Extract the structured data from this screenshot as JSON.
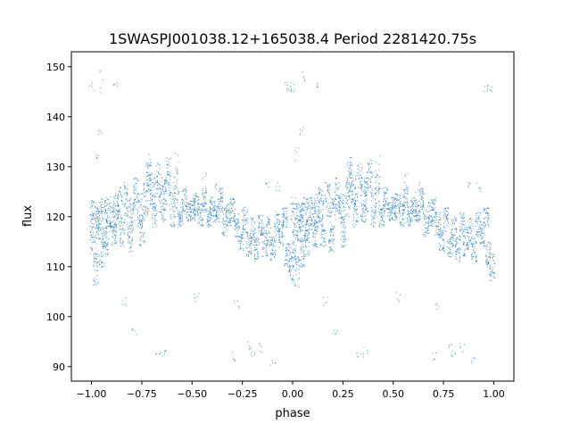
{
  "chart_data": {
    "type": "scatter",
    "title": "1SWASPJ001038.12+165038.4 Period 2281420.75s",
    "xlabel": "phase",
    "ylabel": "flux",
    "xlim": [
      -1.1,
      1.1
    ],
    "ylim": [
      87.1,
      153.0
    ],
    "xticks": [
      -1.0,
      -0.75,
      -0.5,
      -0.25,
      0.0,
      0.25,
      0.5,
      0.75,
      1.0
    ],
    "xtick_labels": [
      "−1.00",
      "−0.75",
      "−0.50",
      "−0.25",
      "0.00",
      "0.25",
      "0.50",
      "0.75",
      "1.00"
    ],
    "yticks": [
      90,
      100,
      110,
      120,
      130,
      140,
      150
    ],
    "ytick_labels": [
      "90",
      "100",
      "110",
      "120",
      "130",
      "140",
      "150"
    ],
    "grid": false,
    "marker_color": "#1f77b4",
    "note_phase_repeats": [
      -1,
      0
    ],
    "streaks_phase_fluxmin_fluxmax": [
      [
        0.0,
        112,
        124
      ],
      [
        0.01,
        113,
        123
      ],
      [
        0.02,
        106,
        113
      ],
      [
        0.03,
        115,
        122
      ],
      [
        0.04,
        117,
        123
      ],
      [
        0.05,
        110,
        116
      ],
      [
        0.06,
        116,
        124
      ],
      [
        0.07,
        112,
        118
      ],
      [
        0.08,
        118,
        124
      ],
      [
        0.1,
        117,
        123
      ],
      [
        0.11,
        114,
        119
      ],
      [
        0.12,
        118,
        125
      ],
      [
        0.14,
        119,
        126
      ],
      [
        0.15,
        114,
        120
      ],
      [
        0.17,
        120,
        127
      ],
      [
        0.19,
        113,
        119
      ],
      [
        0.2,
        117,
        124
      ],
      [
        0.22,
        121,
        128
      ],
      [
        0.24,
        118,
        125
      ],
      [
        0.25,
        114,
        120
      ],
      [
        0.27,
        120,
        127
      ],
      [
        0.28,
        125,
        131
      ],
      [
        0.3,
        122,
        129
      ],
      [
        0.31,
        118,
        124
      ],
      [
        0.33,
        124,
        131
      ],
      [
        0.35,
        119,
        126
      ],
      [
        0.36,
        121,
        128
      ],
      [
        0.38,
        124,
        132
      ],
      [
        0.4,
        118,
        125
      ],
      [
        0.42,
        120,
        130
      ],
      [
        0.44,
        118,
        122
      ],
      [
        0.46,
        121,
        126
      ],
      [
        0.48,
        119,
        123
      ],
      [
        0.5,
        119,
        124
      ],
      [
        0.52,
        120,
        125
      ],
      [
        0.54,
        118,
        123
      ],
      [
        0.56,
        121,
        126
      ],
      [
        0.58,
        118,
        122
      ],
      [
        0.6,
        120,
        124
      ],
      [
        0.62,
        119,
        123
      ],
      [
        0.64,
        121,
        126
      ],
      [
        0.66,
        116,
        122
      ],
      [
        0.68,
        118,
        123
      ],
      [
        0.7,
        119,
        124
      ],
      [
        0.72,
        116,
        121
      ],
      [
        0.74,
        113,
        118
      ],
      [
        0.76,
        117,
        122
      ],
      [
        0.78,
        112,
        117
      ],
      [
        0.8,
        114,
        120
      ],
      [
        0.82,
        111,
        116
      ],
      [
        0.84,
        116,
        121
      ],
      [
        0.86,
        112,
        118
      ],
      [
        0.88,
        114,
        120
      ],
      [
        0.9,
        111,
        116
      ],
      [
        0.92,
        116,
        121
      ],
      [
        0.94,
        114,
        119
      ],
      [
        0.96,
        118,
        122
      ],
      [
        0.97,
        110,
        115
      ],
      [
        0.99,
        107,
        113
      ]
    ],
    "outlier_streaks_phase_fluxmin_fluxmax": [
      [
        0.0,
        145,
        147
      ],
      [
        0.04,
        136,
        138
      ],
      [
        0.05,
        144,
        150
      ],
      [
        0.02,
        131,
        134
      ],
      [
        0.33,
        92,
        93
      ],
      [
        0.36,
        92,
        94
      ],
      [
        0.28,
        130,
        133
      ],
      [
        0.42,
        128,
        133
      ],
      [
        0.56,
        126,
        129
      ],
      [
        0.62,
        125,
        127
      ],
      [
        0.7,
        91,
        93
      ],
      [
        0.72,
        101,
        104
      ],
      [
        0.78,
        93,
        95
      ],
      [
        0.8,
        92,
        93
      ],
      [
        0.84,
        93,
        95
      ],
      [
        0.87,
        126,
        127
      ],
      [
        0.92,
        125,
        127
      ],
      [
        0.96,
        145,
        147
      ],
      [
        0.98,
        145,
        147
      ],
      [
        0.9,
        90,
        92
      ],
      [
        0.16,
        102,
        104
      ],
      [
        0.21,
        96,
        98
      ],
      [
        0.52,
        103,
        105
      ],
      [
        0.12,
        146,
        147
      ]
    ]
  }
}
